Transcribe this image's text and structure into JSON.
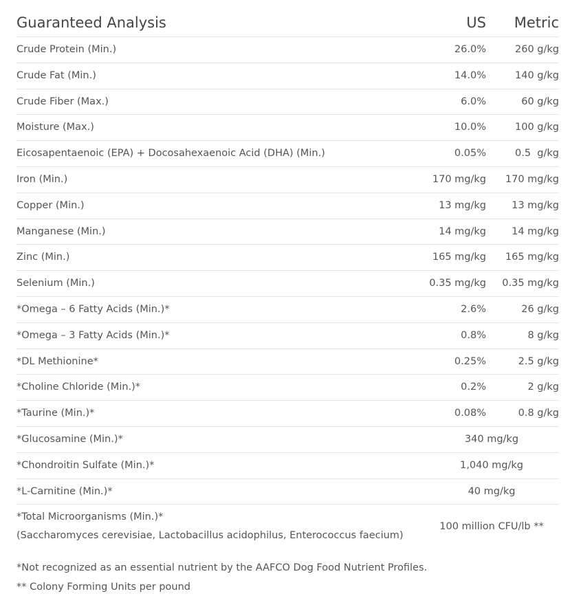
{
  "table": {
    "header": [
      "Guaranteed Analysis",
      "US",
      "Metric"
    ],
    "rows": [
      {
        "label": "Crude Protein (Min.)",
        "us": "26.0%",
        "metric": "260 g/kg"
      },
      {
        "label": "Crude Fat (Min.)",
        "us": "14.0%",
        "metric": "140 g/kg"
      },
      {
        "label": "Crude Fiber (Max.)",
        "us": "6.0%",
        "metric": "60 g/kg"
      },
      {
        "label": "Moisture (Max.)",
        "us": "10.0%",
        "metric": "100 g/kg"
      },
      {
        "label": "Eicosapentaenoic (EPA) + Docosahexaenoic Acid (DHA) (Min.)",
        "us": "0.05%",
        "metric": "0.5  g/kg"
      },
      {
        "label": "Iron (Min.)",
        "us": "170 mg/kg",
        "metric": "170 mg/kg"
      },
      {
        "label": "Copper (Min.)",
        "us": "13 mg/kg",
        "metric": "13 mg/kg"
      },
      {
        "label": "Manganese (Min.)",
        "us": "14 mg/kg",
        "metric": "14 mg/kg"
      },
      {
        "label": "Zinc (Min.)",
        "us": "165 mg/kg",
        "metric": "165 mg/kg"
      },
      {
        "label": "Selenium (Min.)",
        "us": "0.35 mg/kg",
        "metric": "0.35 mg/kg"
      },
      {
        "label": "*Omega – 6 Fatty Acids (Min.)*",
        "us": "2.6%",
        "metric": "26 g/kg"
      },
      {
        "label": "*Omega – 3 Fatty Acids (Min.)*",
        "us": "0.8%",
        "metric": "8 g/kg"
      },
      {
        "label": "*DL Methionine*",
        "us": "0.25%",
        "metric": "2.5 g/kg"
      },
      {
        "label": "*Choline Chloride (Min.)*",
        "us": "0.2%",
        "metric": "2 g/kg"
      },
      {
        "label": "*Taurine (Min.)*",
        "us": "0.08%",
        "metric": "0.8 g/kg"
      },
      {
        "label": "*Glucosamine (Min.)*",
        "value": "340 mg/kg"
      },
      {
        "label": "*Chondroitin Sulfate (Min.)*",
        "value": "1,040 mg/kg"
      },
      {
        "label": "*L-Carnitine (Min.)*",
        "value": "40 mg/kg"
      },
      {
        "label": "*Total Microorganisms (Min.)*",
        "note": "(Saccharomyces cerevisiae, Lactobacillus acidophilus, Enterococcus faecium)",
        "value": "100 million CFU/lb **"
      }
    ]
  },
  "footnotes": [
    "*Not recognized as an essential nutrient by the AAFCO Dog Food Nutrient Profiles.",
    "** Colony Forming Units per pound"
  ]
}
